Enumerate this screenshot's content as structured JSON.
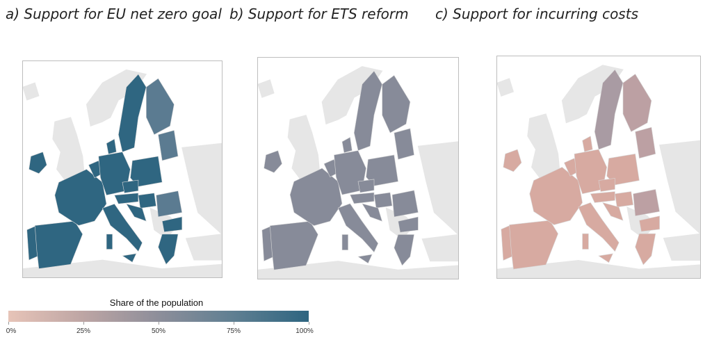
{
  "panels": [
    {
      "title": "a) Support for EU net zero goal",
      "fill": "#2f6681",
      "fill_north": "#5b7b91",
      "fill_nordic": "#2f6681"
    },
    {
      "title": "b) Support for ETS reform",
      "fill": "#878b99",
      "fill_north": "#878b99",
      "fill_nordic": "#878b99"
    },
    {
      "title": "c) Support for incurring costs",
      "fill": "#d7aaa1",
      "fill_north": "#bca0a3",
      "fill_nordic": "#a99ba3"
    }
  ],
  "colors": {
    "background_land": "#e6e6e6",
    "sea": "#ffffff",
    "border": "#d8d8d8",
    "scale_low": "#e7c4b8",
    "scale_high": "#2e6580"
  },
  "legend": {
    "title": "Share of the population",
    "ticks": [
      "0%",
      "25%",
      "50%",
      "75%",
      "100%"
    ],
    "tick_fractions": [
      0,
      0.25,
      0.5,
      0.75,
      1
    ]
  }
}
